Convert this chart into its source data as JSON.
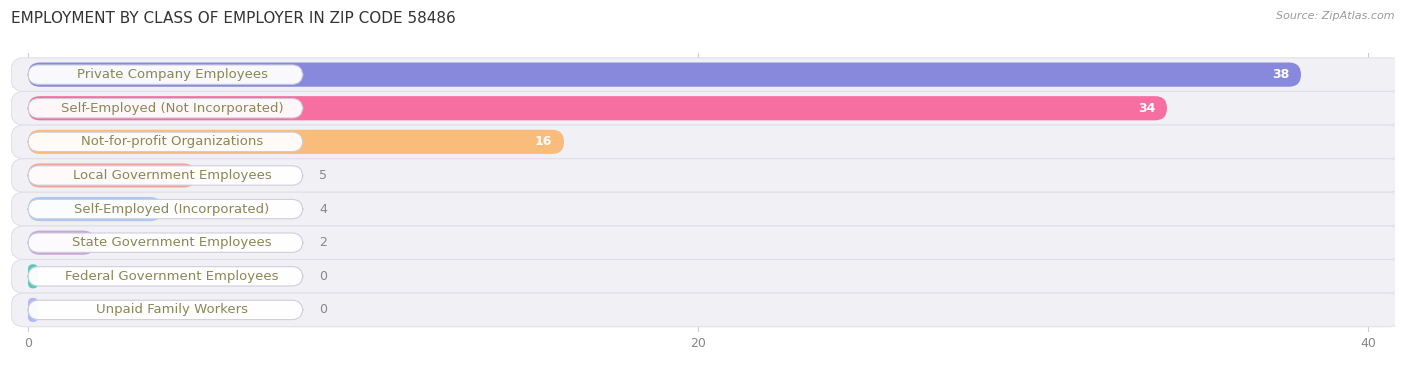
{
  "title": "EMPLOYMENT BY CLASS OF EMPLOYER IN ZIP CODE 58486",
  "source": "Source: ZipAtlas.com",
  "categories": [
    "Private Company Employees",
    "Self-Employed (Not Incorporated)",
    "Not-for-profit Organizations",
    "Local Government Employees",
    "Self-Employed (Incorporated)",
    "State Government Employees",
    "Federal Government Employees",
    "Unpaid Family Workers"
  ],
  "values": [
    38,
    34,
    16,
    5,
    4,
    2,
    0,
    0
  ],
  "bar_colors": [
    "#8888dd",
    "#f76fa0",
    "#f9bc7a",
    "#f0a898",
    "#aac8f0",
    "#c8a8d8",
    "#5ec8b8",
    "#b0b8f8"
  ],
  "row_bg_color": "#f0f0f5",
  "xlim_max": 40,
  "xticks": [
    0,
    20,
    40
  ],
  "title_fontsize": 11,
  "label_fontsize": 9.5,
  "value_fontsize": 9,
  "background_color": "#ffffff",
  "grid_color": "#cccccc",
  "label_text_color": "#888855",
  "value_color_inside": "#ffffff",
  "value_color_outside": "#888888"
}
